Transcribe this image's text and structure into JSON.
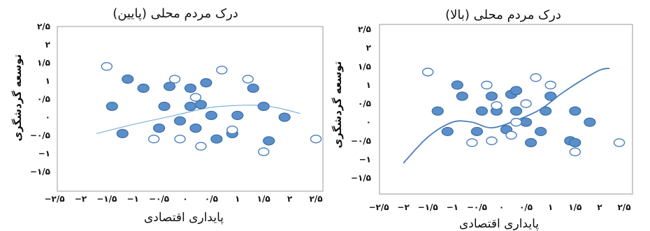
{
  "chart_data": [
    {
      "type": "scatter",
      "title": "درک مردم محلی (پایین)",
      "xlabel": "پایداری اقتصادی",
      "ylabel": "توسعه گردشگری",
      "xlim": [
        -2.5,
        2.5
      ],
      "ylim": [
        -1.5,
        2.5
      ],
      "x_ticks": [
        "−۲/۵",
        "−۲",
        "−۱/۵",
        "−۱",
        "−۰/۵",
        "۰",
        "۰/۵",
        "۱",
        "۱/۵",
        "۲",
        "۲/۵"
      ],
      "y_ticks": [
        "۲/۵",
        "۲",
        "۱/۵",
        "۱",
        "۰/۵",
        "۰",
        "−۰/۵",
        "−۱",
        "−۱/۵"
      ],
      "colors": {
        "filled": "#5b8fc9",
        "filled_edge": "#3a6ea5",
        "hollow_edge": "#4a7fbd",
        "curve": "#7eb2dc"
      },
      "series": [
        {
          "marker": "filled",
          "x": [
            -1.4,
            -1.2,
            -1.1,
            -0.8,
            -0.5,
            -0.4,
            -0.3,
            -0.1,
            0.1,
            0.1,
            0.2,
            0.3,
            0.4,
            0.5,
            0.6,
            0.9,
            1.0,
            1.3,
            1.5,
            1.6,
            1.9
          ],
          "y": [
            0.3,
            -0.45,
            1.05,
            0.8,
            -0.3,
            0.3,
            0.85,
            -0.1,
            0.3,
            0.8,
            -0.3,
            0.35,
            0.95,
            0.05,
            -0.6,
            -0.45,
            0.05,
            0.8,
            0.3,
            -0.65,
            0.0
          ]
        },
        {
          "marker": "hollow",
          "x": [
            -1.5,
            -0.6,
            -0.2,
            -0.1,
            0.2,
            0.3,
            0.7,
            0.9,
            1.2,
            1.5,
            2.5
          ],
          "y": [
            1.4,
            -0.6,
            1.05,
            -0.6,
            0.55,
            -0.8,
            1.3,
            -0.35,
            1.05,
            -0.95,
            -0.6
          ]
        }
      ],
      "curve": {
        "x": [
          -1.7,
          -1.0,
          -0.2,
          0.4,
          0.9,
          1.4,
          1.8,
          2.2
        ],
        "y": [
          -0.45,
          -0.2,
          0.05,
          0.25,
          0.32,
          0.33,
          0.25,
          0.1
        ]
      }
    },
    {
      "type": "scatter",
      "title": "درک مردم محلی (بالا)",
      "xlabel": "پایداری اقتصادی",
      "ylabel": "توسعه گردشگری",
      "xlim": [
        -2.5,
        2.5
      ],
      "ylim": [
        -1.5,
        2.5
      ],
      "x_ticks": [
        "−۲/۵",
        "−۲",
        "−۱/۵",
        "−۱",
        "−۰/۵",
        "۰",
        "۰/۵",
        "۱",
        "۱/۵",
        "۲",
        "۲/۵"
      ],
      "y_ticks": [
        "۲/۵",
        "۲",
        "۱/۵",
        "۱",
        "۰/۵",
        "۰",
        "−۰/۵",
        "−۱",
        "−۱/۵"
      ],
      "colors": {
        "filled": "#5b8fc9",
        "filled_edge": "#3a6ea5",
        "hollow_edge": "#4a7fbd",
        "curve": "#4a7fbd"
      },
      "series": [
        {
          "marker": "filled",
          "x": [
            -1.3,
            -1.1,
            -0.9,
            -0.8,
            -0.5,
            -0.4,
            -0.2,
            -0.1,
            0.1,
            0.2,
            0.3,
            0.3,
            0.5,
            0.6,
            0.8,
            0.9,
            1.0,
            1.4,
            1.5,
            1.5,
            1.8
          ],
          "y": [
            0.3,
            -0.25,
            1.0,
            0.7,
            -0.25,
            0.3,
            0.7,
            0.3,
            -0.2,
            0.75,
            0.3,
            0.85,
            0.0,
            -0.55,
            -0.25,
            0.3,
            0.7,
            -0.5,
            0.3,
            -0.55,
            0.0
          ]
        },
        {
          "marker": "hollow",
          "x": [
            -1.5,
            -0.6,
            -0.3,
            -0.2,
            -0.1,
            0.2,
            0.3,
            0.5,
            0.7,
            1.0,
            1.5,
            2.4
          ],
          "y": [
            1.35,
            -0.55,
            1.0,
            -0.5,
            0.45,
            -0.35,
            0.0,
            0.5,
            1.2,
            1.0,
            -0.8,
            -0.55
          ]
        }
      ],
      "curve": {
        "x": [
          -2.0,
          -1.5,
          -1.0,
          -0.6,
          -0.2,
          0.3,
          0.8,
          1.2,
          1.6,
          2.0,
          2.2
        ],
        "y": [
          -1.1,
          -0.4,
          0.0,
          0.0,
          -0.15,
          0.05,
          0.35,
          0.75,
          1.1,
          1.4,
          1.45
        ]
      }
    }
  ]
}
